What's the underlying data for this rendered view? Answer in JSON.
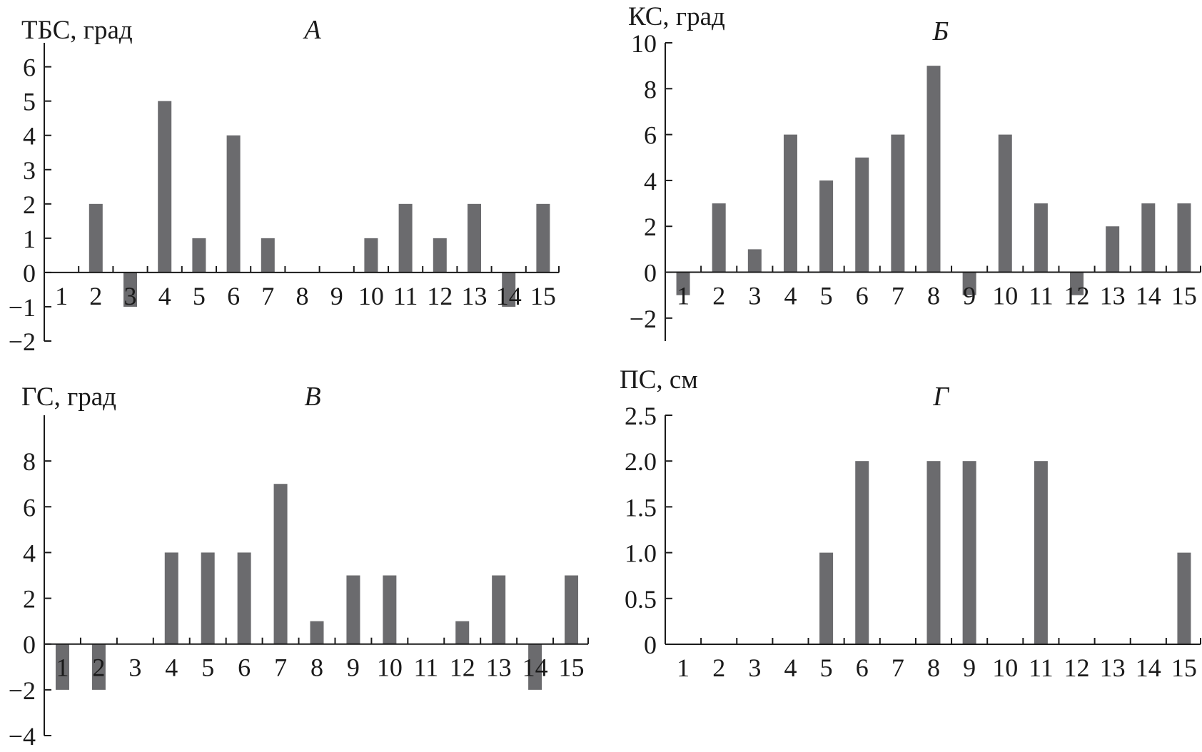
{
  "chart_data": [
    {
      "type": "bar",
      "panel": "А",
      "ylabel": "ТБС, град",
      "categories": [
        "1",
        "2",
        "3",
        "4",
        "5",
        "6",
        "7",
        "8",
        "9",
        "10",
        "11",
        "12",
        "13",
        "14",
        "15"
      ],
      "values": [
        0,
        2,
        -1,
        5,
        1,
        4,
        1,
        0,
        0,
        1,
        2,
        1,
        2,
        -1,
        2
      ],
      "ylim": [
        -2,
        6.7
      ],
      "yticks": [
        -2,
        -1,
        0,
        1,
        2,
        3,
        4,
        5,
        6
      ],
      "ytick_labels": [
        "−2",
        "−1",
        "0",
        "1",
        "2",
        "3",
        "4",
        "5",
        "6"
      ]
    },
    {
      "type": "bar",
      "panel": "Б",
      "ylabel": "КС, град",
      "categories": [
        "1",
        "2",
        "3",
        "4",
        "5",
        "6",
        "7",
        "8",
        "9",
        "10",
        "11",
        "12",
        "13",
        "14",
        "15"
      ],
      "values": [
        -1,
        3,
        1,
        6,
        4,
        5,
        6,
        9,
        -1,
        6,
        3,
        -1,
        2,
        3,
        3
      ],
      "ylim": [
        -3,
        10
      ],
      "yticks": [
        -2,
        0,
        2,
        4,
        6,
        8,
        10
      ],
      "ytick_labels": [
        "−2",
        "0",
        "2",
        "4",
        "6",
        "8",
        "10"
      ]
    },
    {
      "type": "bar",
      "panel": "В",
      "ylabel": "ГС, град",
      "categories": [
        "1",
        "2",
        "3",
        "4",
        "5",
        "6",
        "7",
        "8",
        "9",
        "10",
        "11",
        "12",
        "13",
        "14",
        "15"
      ],
      "values": [
        -2,
        -2,
        0,
        4,
        4,
        4,
        7,
        1,
        3,
        3,
        0,
        1,
        3,
        -2,
        3
      ],
      "ylim": [
        -4,
        10
      ],
      "yticks": [
        -4,
        -2,
        0,
        2,
        4,
        6,
        8
      ],
      "ytick_labels": [
        "−4",
        "−2",
        "0",
        "2",
        "4",
        "6",
        "8"
      ]
    },
    {
      "type": "bar",
      "panel": "Г",
      "ylabel": "ПС, см",
      "categories": [
        "1",
        "2",
        "3",
        "4",
        "5",
        "6",
        "7",
        "8",
        "9",
        "10",
        "11",
        "12",
        "13",
        "14",
        "15"
      ],
      "values": [
        0,
        0,
        0,
        0,
        1,
        2,
        0,
        2,
        2,
        0,
        2,
        0,
        0,
        0,
        1
      ],
      "ylim": [
        0,
        2.5
      ],
      "yticks": [
        0,
        0.5,
        1.0,
        1.5,
        2.0,
        2.5
      ],
      "ytick_labels": [
        "0",
        "0.5",
        "1.0",
        "1.5",
        "2.0",
        "2.5"
      ]
    }
  ]
}
